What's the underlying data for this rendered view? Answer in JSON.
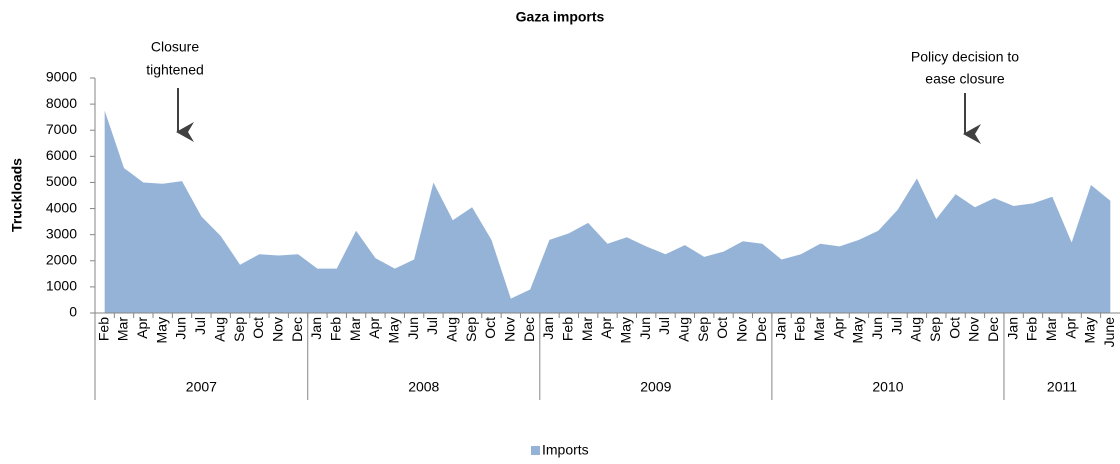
{
  "chart_data": {
    "type": "area",
    "title": "Gaza imports",
    "y_label": "Truckloads",
    "categories": [
      "Feb",
      "Mar",
      "Apr",
      "May",
      "Jun",
      "Jul",
      "Aug",
      "Sep",
      "Oct",
      "Nov",
      "Dec",
      "Jan",
      "Feb",
      "Mar",
      "Apr",
      "May",
      "Jun",
      "Jul",
      "Aug",
      "Sep",
      "Oct",
      "Nov",
      "Dec",
      "Jan",
      "Feb",
      "Mar",
      "Apr",
      "May",
      "Jun",
      "Jul",
      "Aug",
      "Sep",
      "Oct",
      "Nov",
      "Dec",
      "Jan",
      "Feb",
      "Mar",
      "Apr",
      "May",
      "Jun",
      "Jul",
      "Aug",
      "Sep",
      "Oct",
      "Nov",
      "Dec",
      "Jan",
      "Feb",
      "Mar",
      "Apr",
      "May",
      "June"
    ],
    "groups": [
      {
        "label": "2007",
        "count": 11
      },
      {
        "label": "2008",
        "count": 12
      },
      {
        "label": "2009",
        "count": 12
      },
      {
        "label": "2010",
        "count": 12
      },
      {
        "label": "2011",
        "count": 6
      }
    ],
    "series": [
      {
        "name": "Imports",
        "color": "#95b3d7",
        "values": [
          7750,
          5550,
          5000,
          4950,
          5050,
          3700,
          2950,
          1850,
          2250,
          2200,
          2250,
          1700,
          1700,
          3150,
          2100,
          1700,
          2050,
          5000,
          3550,
          4050,
          2800,
          550,
          900,
          2800,
          3050,
          3450,
          2650,
          2900,
          2550,
          2250,
          2600,
          2150,
          2350,
          2750,
          2650,
          2050,
          2250,
          2650,
          2550,
          2800,
          3150,
          3950,
          5150,
          3600,
          4550,
          4050,
          4400,
          4100,
          4200,
          4450,
          2700,
          4900,
          4300
        ]
      }
    ],
    "ylim": [
      0,
      9000
    ],
    "yticks": [
      0,
      1000,
      2000,
      3000,
      4000,
      5000,
      6000,
      7000,
      8000,
      9000
    ],
    "annotations": [
      {
        "lines": [
          "Closure",
          "tightened"
        ]
      },
      {
        "lines": [
          "Policy decision to",
          "ease closure"
        ]
      }
    ],
    "legend": "bottom"
  }
}
